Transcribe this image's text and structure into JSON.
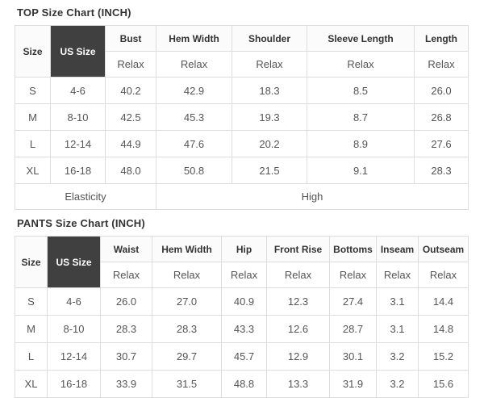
{
  "colors": {
    "dark_header_bg": "#404040",
    "dark_header_text": "#ffffff",
    "border": "#dddddd",
    "header_text": "#333333",
    "data_text": "#555555"
  },
  "tables": [
    {
      "title": "TOP Size Chart (INCH)",
      "size_header": "Size",
      "us_size_header": "US Size",
      "fit_label": "Relax",
      "columns": [
        "Bust",
        "Hem Width",
        "Shoulder",
        "Sleeve Length",
        "Length"
      ],
      "rows": [
        {
          "size": "S",
          "us_size": "4-6",
          "values": [
            "40.2",
            "42.9",
            "18.3",
            "8.5",
            "26.0"
          ]
        },
        {
          "size": "M",
          "us_size": "8-10",
          "values": [
            "42.5",
            "45.3",
            "19.3",
            "8.7",
            "26.8"
          ]
        },
        {
          "size": "L",
          "us_size": "12-14",
          "values": [
            "44.9",
            "47.6",
            "20.2",
            "8.9",
            "27.6"
          ]
        },
        {
          "size": "XL",
          "us_size": "16-18",
          "values": [
            "48.0",
            "50.8",
            "21.5",
            "9.1",
            "28.3"
          ]
        }
      ],
      "footer": {
        "label": "Elasticity",
        "value": "High"
      }
    },
    {
      "title": "PANTS Size Chart (INCH)",
      "size_header": "Size",
      "us_size_header": "US Size",
      "fit_label": "Relax",
      "columns": [
        "Waist",
        "Hem Width",
        "Hip",
        "Front Rise",
        "Bottoms",
        "Inseam",
        "Outseam"
      ],
      "rows": [
        {
          "size": "S",
          "us_size": "4-6",
          "values": [
            "26.0",
            "27.0",
            "40.9",
            "12.3",
            "27.4",
            "3.1",
            "14.4"
          ]
        },
        {
          "size": "M",
          "us_size": "8-10",
          "values": [
            "28.3",
            "28.3",
            "43.3",
            "12.6",
            "28.7",
            "3.1",
            "14.8"
          ]
        },
        {
          "size": "L",
          "us_size": "12-14",
          "values": [
            "30.7",
            "29.7",
            "45.7",
            "12.9",
            "30.1",
            "3.2",
            "15.2"
          ]
        },
        {
          "size": "XL",
          "us_size": "16-18",
          "values": [
            "33.9",
            "31.5",
            "48.8",
            "13.3",
            "31.9",
            "3.2",
            "15.6"
          ]
        }
      ]
    }
  ]
}
